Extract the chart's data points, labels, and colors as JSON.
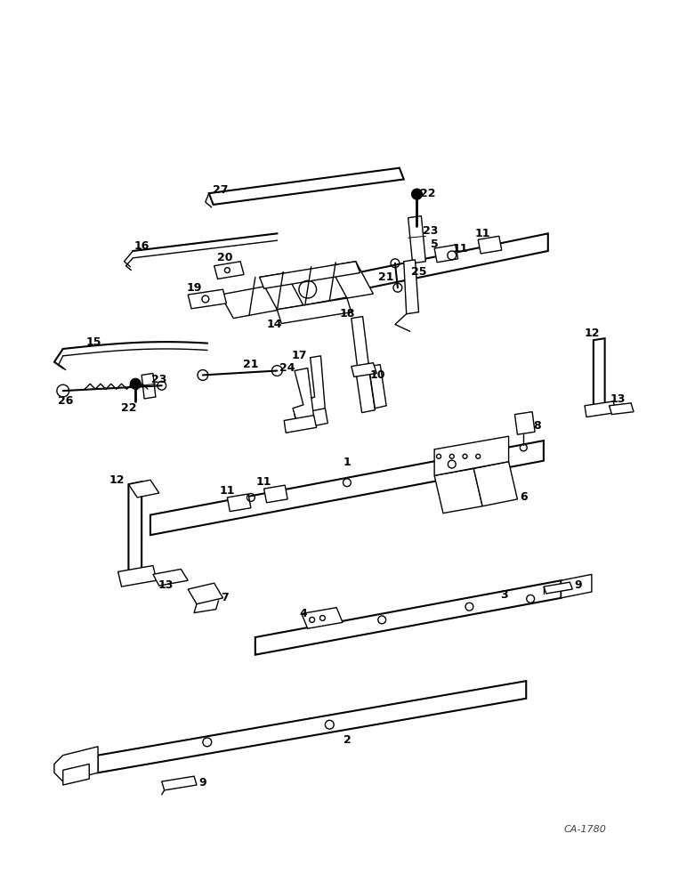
{
  "bg_color": "#ffffff",
  "line_color": "#000000",
  "watermark": "CA-1780",
  "figsize": [
    7.72,
    10.0
  ],
  "dpi": 100
}
